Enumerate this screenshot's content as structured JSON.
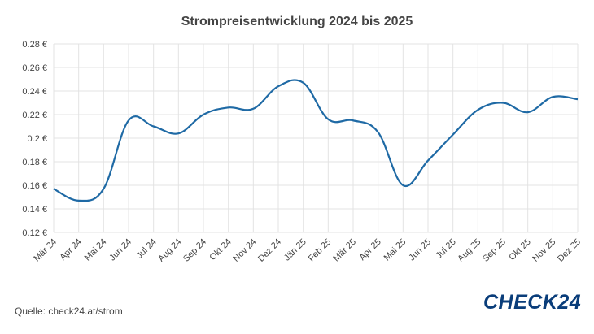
{
  "chart_data": {
    "type": "line",
    "title": "Strompreisentwicklung 2024 bis 2025",
    "categories": [
      "Mär 24",
      "Apr 24",
      "Mai 24",
      "Jun 24",
      "Jul 24",
      "Aug 24",
      "Sep 24",
      "Okt 24",
      "Nov 24",
      "Dez 24",
      "Jän 25",
      "Feb 25",
      "Mär 25",
      "Apr 25",
      "Mai 25",
      "Jun 25",
      "Jul 25",
      "Aug 25",
      "Sep 25",
      "Okt 25",
      "Nov 25",
      "Dez 25"
    ],
    "series": [
      {
        "values": [
          0.157,
          0.147,
          0.157,
          0.215,
          0.21,
          0.204,
          0.22,
          0.226,
          0.225,
          0.244,
          0.247,
          0.216,
          0.215,
          0.205,
          0.16,
          0.181,
          0.203,
          0.224,
          0.23,
          0.222,
          0.235,
          0.233
        ]
      }
    ],
    "yticks": [
      "0.12 €",
      "0.14 €",
      "0.16 €",
      "0.18 €",
      "0.2 €",
      "0.22 €",
      "0.24 €",
      "0.26 €",
      "0.28 €"
    ],
    "ylim": [
      0.12,
      0.28
    ],
    "grid": true,
    "line_color": "#1f6aa5"
  },
  "footer": {
    "source": "Quelle: check24.at/strom",
    "brand": "CHECK24"
  }
}
